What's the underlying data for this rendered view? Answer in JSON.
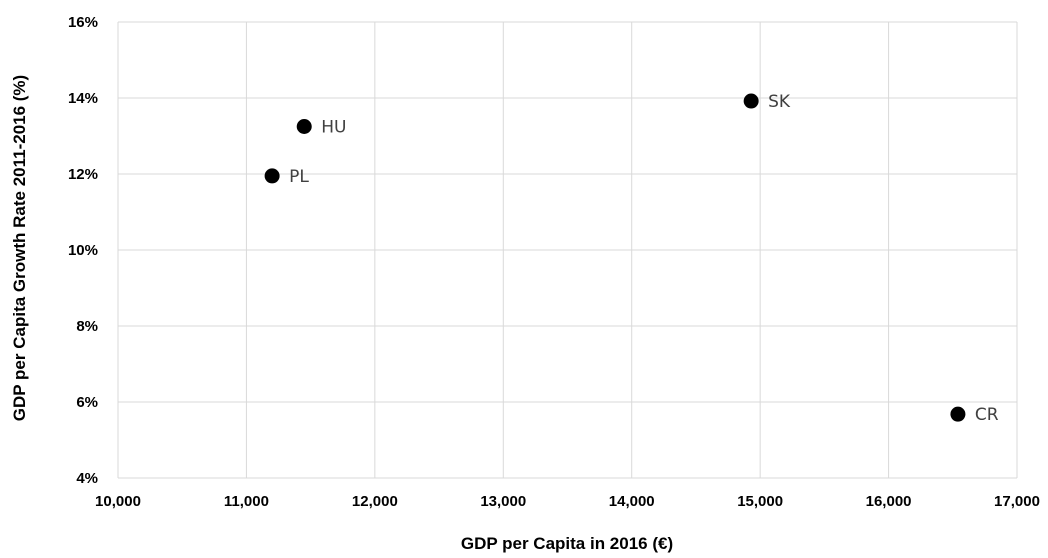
{
  "chart_data": {
    "type": "scatter",
    "title": "",
    "xlabel": "GDP per Capita in 2016 (€)",
    "ylabel": "GDP per Capita Growth Rate 2011-2016 (%)",
    "xlim": [
      10000,
      17000
    ],
    "ylim": [
      4,
      16
    ],
    "x_ticks": [
      10000,
      11000,
      12000,
      13000,
      14000,
      15000,
      16000,
      17000
    ],
    "x_tick_labels": [
      "10,000",
      "11,000",
      "12,000",
      "13,000",
      "14,000",
      "15,000",
      "16,000",
      "17,000"
    ],
    "y_ticks": [
      4,
      6,
      8,
      10,
      12,
      14,
      16
    ],
    "y_tick_labels": [
      "4%",
      "6%",
      "8%",
      "10%",
      "12%",
      "14%",
      "16%"
    ],
    "grid": true,
    "points": [
      {
        "label": "HU",
        "x": 11450,
        "y": 13.25
      },
      {
        "label": "PL",
        "x": 11200,
        "y": 11.95
      },
      {
        "label": "SK",
        "x": 14930,
        "y": 13.92
      },
      {
        "label": "CR",
        "x": 16540,
        "y": 5.68
      }
    ],
    "marker_color": "#000000",
    "label_color": "#404040",
    "grid_color": "#d9d9d9"
  }
}
